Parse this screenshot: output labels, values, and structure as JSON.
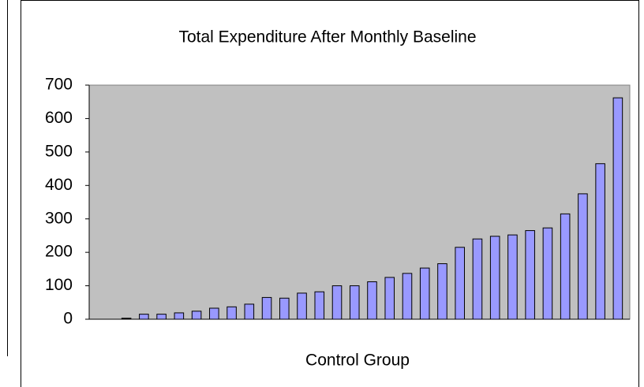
{
  "chart_data": {
    "type": "bar",
    "title": "Total Expenditure After Monthly Baseline",
    "x_label": "Control Group",
    "values": [
      3,
      15,
      15,
      19,
      24,
      33,
      37,
      45,
      65,
      63,
      78,
      82,
      100,
      100,
      112,
      125,
      137,
      153,
      166,
      215,
      240,
      248,
      252,
      265,
      273,
      315,
      375,
      465,
      662
    ],
    "colors": [
      "#000000",
      "#9999ff",
      "#9999ff",
      "#9999ff",
      "#9999ff",
      "#9999ff",
      "#9999ff",
      "#9999ff",
      "#9999ff",
      "#9999ff",
      "#9999ff",
      "#9999ff",
      "#9999ff",
      "#9999ff",
      "#9999ff",
      "#9999ff",
      "#9999ff",
      "#9999ff",
      "#9999ff",
      "#9999ff",
      "#9999ff",
      "#9999ff",
      "#9999ff",
      "#9999ff",
      "#9999ff",
      "#9999ff",
      "#9999ff",
      "#9999ff",
      "#9999ff"
    ],
    "plot_background": "#c0c0c0",
    "ylim": [
      0,
      700
    ],
    "yticks": [
      0,
      100,
      200,
      300,
      400,
      500,
      600,
      700
    ]
  }
}
